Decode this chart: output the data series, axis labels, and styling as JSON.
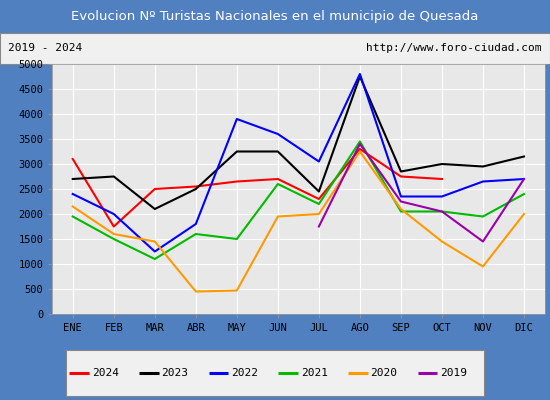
{
  "title": "Evolucion Nº Turistas Nacionales en el municipio de Quesada",
  "subtitle_left": "2019 - 2024",
  "subtitle_right": "http://www.foro-ciudad.com",
  "months": [
    "ENE",
    "FEB",
    "MAR",
    "ABR",
    "MAY",
    "JUN",
    "JUL",
    "AGO",
    "SEP",
    "OCT",
    "NOV",
    "DIC"
  ],
  "ylim": [
    0,
    5000
  ],
  "yticks": [
    0,
    500,
    1000,
    1500,
    2000,
    2500,
    3000,
    3500,
    4000,
    4500,
    5000
  ],
  "series": {
    "2024": {
      "color": "#ff0000",
      "linewidth": 1.5,
      "values": [
        3100,
        1750,
        2500,
        2550,
        2650,
        2700,
        2300,
        3300,
        2750,
        2700,
        null,
        null
      ]
    },
    "2023": {
      "color": "#000000",
      "linewidth": 1.5,
      "values": [
        2700,
        2750,
        2100,
        2500,
        3250,
        3250,
        2450,
        4750,
        2850,
        3000,
        2950,
        3150
      ]
    },
    "2022": {
      "color": "#0000ff",
      "linewidth": 1.5,
      "values": [
        2400,
        2000,
        1250,
        1800,
        3900,
        3600,
        3050,
        4800,
        2350,
        2350,
        2650,
        2700
      ]
    },
    "2021": {
      "color": "#00bb00",
      "linewidth": 1.5,
      "values": [
        1950,
        1500,
        1100,
        1600,
        1500,
        2600,
        2200,
        3450,
        2050,
        2050,
        1950,
        2400
      ]
    },
    "2020": {
      "color": "#ff9900",
      "linewidth": 1.5,
      "values": [
        2150,
        1600,
        1450,
        450,
        470,
        1950,
        2000,
        3250,
        2100,
        1450,
        950,
        2000
      ]
    },
    "2019": {
      "color": "#9900aa",
      "linewidth": 1.5,
      "values": [
        null,
        null,
        null,
        null,
        null,
        null,
        1750,
        3400,
        2250,
        2050,
        1450,
        2700
      ]
    }
  },
  "title_bg_color": "#5080c0",
  "title_text_color": "#ffffff",
  "plot_bg_color": "#e8e8e8",
  "border_color": "#5080c0",
  "grid_color": "#ffffff",
  "subtitle_bg_color": "#f0f0f0",
  "legend_bg_color": "#f0f0f0"
}
